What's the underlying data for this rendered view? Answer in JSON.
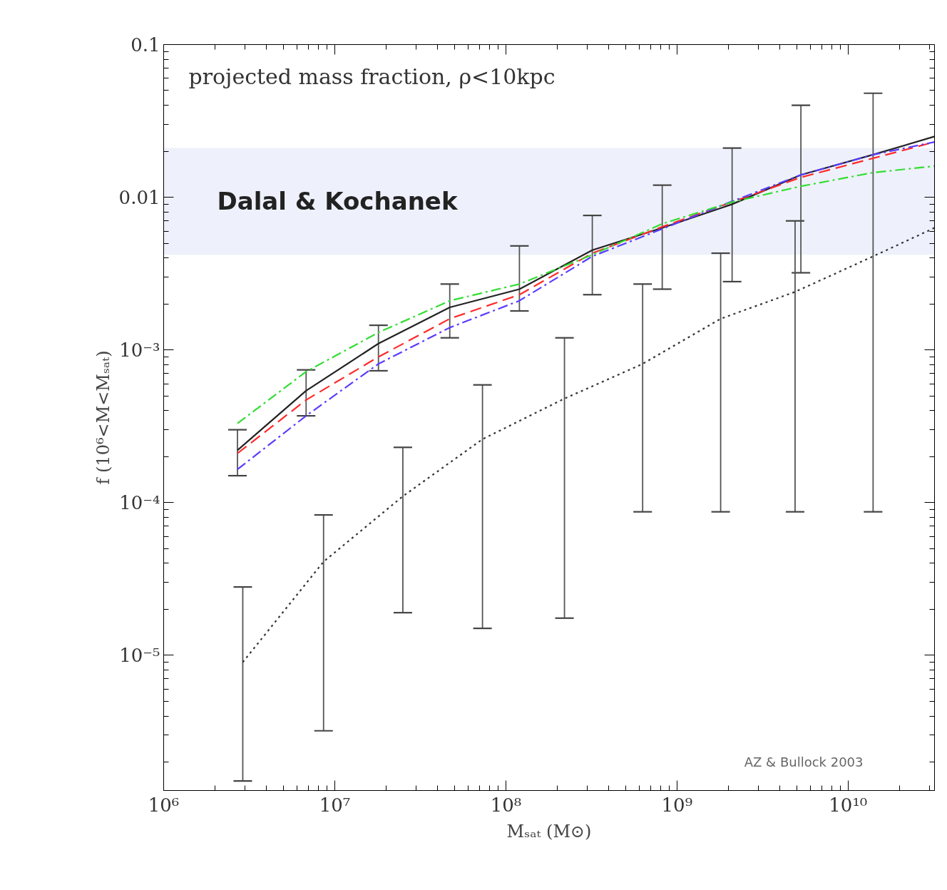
{
  "chart_data": {
    "type": "line",
    "title": "projected mass fraction, ρ<10kpc",
    "xlabel": "Mₛₐₜ (M⊙)",
    "ylabel": "f (10⁶<M<Mₛₐₜ)",
    "log": "xy",
    "grid": false,
    "marker": "none",
    "xlim": [
      1000000,
      32000000000
    ],
    "ylim": [
      1.3e-06,
      0.1
    ],
    "xticks": [
      {
        "value": 1000000,
        "label": "10⁶"
      },
      {
        "value": 10000000,
        "label": "10⁷"
      },
      {
        "value": 100000000,
        "label": "10⁸"
      },
      {
        "value": 1000000000,
        "label": "10⁹"
      },
      {
        "value": 10000000000,
        "label": "10¹⁰"
      }
    ],
    "yticks": [
      {
        "value": 1e-05,
        "label": "10⁻⁵"
      },
      {
        "value": 0.0001,
        "label": "10⁻⁴"
      },
      {
        "value": 0.001,
        "label": "10⁻³"
      },
      0.01,
      0.1
    ],
    "x": [
      2700000,
      6800000,
      18000000,
      47000000,
      120000000,
      320000000,
      820000000,
      2100000000,
      5300000000,
      14000000000,
      32000000000
    ],
    "series": [
      {
        "color": "#222222",
        "line_style": "solid",
        "values": [
          0.00022,
          0.00054,
          0.0011,
          0.0019,
          0.0025,
          0.0045,
          0.0063,
          0.009,
          0.014,
          0.019,
          0.025
        ],
        "errors": [
          [
            0.00015,
            0.0003
          ],
          [
            0.00037,
            0.00074
          ],
          [
            0.00073,
            0.00145
          ],
          [
            0.0012,
            0.0027
          ],
          [
            0.0018,
            0.0048
          ],
          [
            0.0023,
            0.0076
          ],
          [
            0.0025,
            0.012
          ],
          [
            0.0028,
            0.021
          ],
          [
            0.0032,
            0.04
          ],
          null,
          null
        ]
      },
      {
        "color": "#ff2a2a",
        "line_style": "dashed",
        "values": [
          0.00021,
          0.00047,
          0.0009,
          0.0016,
          0.0023,
          0.0043,
          0.0064,
          0.0093,
          0.0135,
          0.018,
          0.023
        ]
      },
      {
        "color": "#5a3cff",
        "line_style": "dashdot",
        "values": [
          0.000165,
          0.00037,
          0.00081,
          0.0014,
          0.0021,
          0.0041,
          0.0062,
          0.0094,
          0.014,
          0.019,
          0.023
        ]
      },
      {
        "color": "#33dd33",
        "line_style": "dashdot",
        "values": [
          0.00033,
          0.00072,
          0.0013,
          0.0021,
          0.0027,
          0.0042,
          0.0067,
          0.0093,
          0.0118,
          0.0145,
          0.016
        ]
      },
      {
        "color": "#333333",
        "line_style": "dotted",
        "x": [
          2900000,
          8600000,
          25000000,
          73000000,
          220000000,
          630000000,
          1800000000,
          4900000000,
          14000000000,
          32000000000
        ],
        "values": [
          9e-06,
          4.1e-05,
          0.00011,
          0.00026,
          0.00048,
          0.00081,
          0.0016,
          0.0024,
          0.0041,
          0.0063
        ],
        "errors": [
          [
            1.5e-06,
            2.8e-05
          ],
          [
            3.2e-06,
            8.3e-05
          ],
          [
            1.9e-05,
            0.00023
          ],
          [
            1.5e-05,
            0.00059
          ],
          [
            1.75e-05,
            0.0012
          ],
          [
            8.7e-05,
            0.0027
          ],
          [
            8.7e-05,
            0.0043
          ],
          [
            8.7e-05,
            0.007
          ],
          [
            8.7e-05,
            0.048
          ],
          null
        ]
      }
    ],
    "bands": [
      {
        "axis": "y",
        "from": 0.0042,
        "to": 0.021,
        "label": "Dalal & Kochanek",
        "color": "#eef1fb"
      }
    ],
    "annotations": [
      "AZ & Bullock 2003"
    ]
  }
}
